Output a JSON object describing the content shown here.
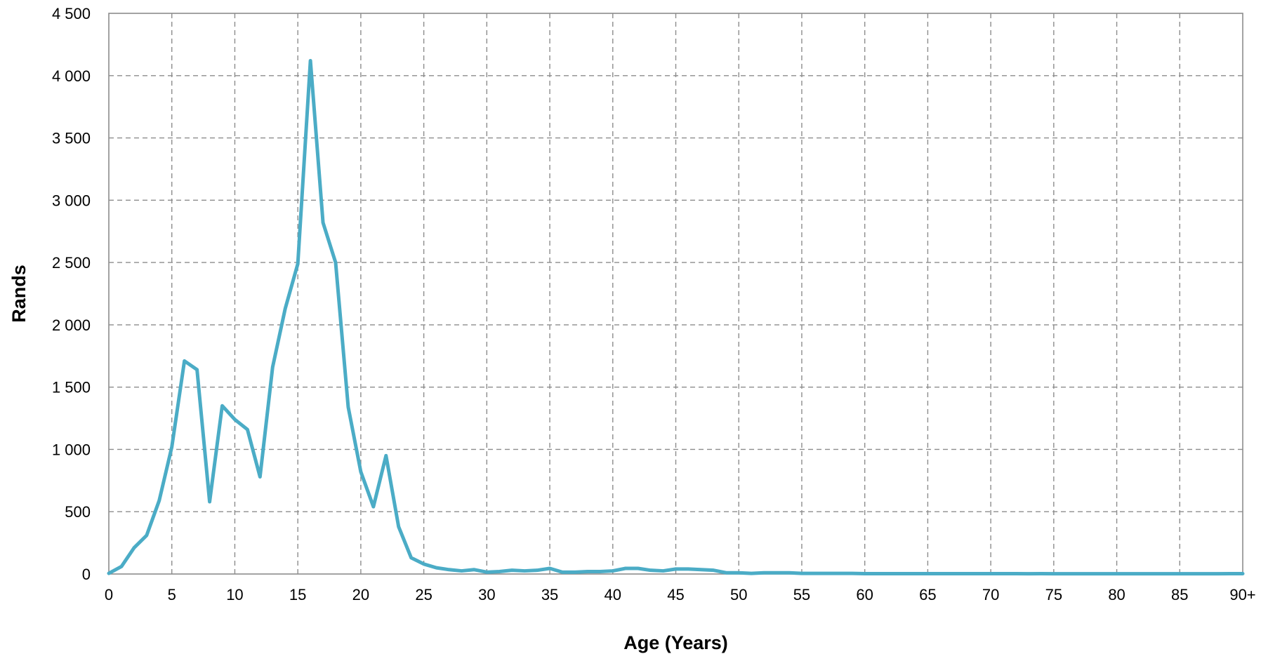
{
  "chart_data": {
    "type": "line",
    "xlabel": "Age (Years)",
    "ylabel": "Rands",
    "xlim": [
      0,
      90
    ],
    "ylim": [
      0,
      4500
    ],
    "grid": true,
    "legend": "none",
    "line_color": "#4bacc6",
    "x_ticks": [
      {
        "value": 0,
        "label": "0"
      },
      {
        "value": 5,
        "label": "5"
      },
      {
        "value": 10,
        "label": "10"
      },
      {
        "value": 15,
        "label": "15"
      },
      {
        "value": 20,
        "label": "20"
      },
      {
        "value": 25,
        "label": "25"
      },
      {
        "value": 30,
        "label": "30"
      },
      {
        "value": 35,
        "label": "35"
      },
      {
        "value": 40,
        "label": "40"
      },
      {
        "value": 45,
        "label": "45"
      },
      {
        "value": 50,
        "label": "50"
      },
      {
        "value": 55,
        "label": "55"
      },
      {
        "value": 60,
        "label": "60"
      },
      {
        "value": 65,
        "label": "65"
      },
      {
        "value": 70,
        "label": "70"
      },
      {
        "value": 75,
        "label": "75"
      },
      {
        "value": 80,
        "label": "80"
      },
      {
        "value": 85,
        "label": "85"
      },
      {
        "value": 90,
        "label": "90+"
      }
    ],
    "y_ticks": [
      {
        "value": 0,
        "label": "0"
      },
      {
        "value": 500,
        "label": "500"
      },
      {
        "value": 1000,
        "label": "1 000"
      },
      {
        "value": 1500,
        "label": "1 500"
      },
      {
        "value": 2000,
        "label": "2 000"
      },
      {
        "value": 2500,
        "label": "2 500"
      },
      {
        "value": 3000,
        "label": "3 000"
      },
      {
        "value": 3500,
        "label": "3 500"
      },
      {
        "value": 4000,
        "label": "4 000"
      },
      {
        "value": 4500,
        "label": "4 500"
      }
    ],
    "series": [
      {
        "x": [
          0,
          1,
          2,
          3,
          4,
          5,
          6,
          7,
          8,
          9,
          10,
          11,
          12,
          13,
          14,
          15,
          16,
          17,
          18,
          19,
          20,
          21,
          22,
          23,
          24,
          25,
          26,
          27,
          28,
          29,
          30,
          31,
          32,
          33,
          34,
          35,
          36,
          37,
          38,
          39,
          40,
          41,
          42,
          43,
          44,
          45,
          46,
          47,
          48,
          49,
          50,
          51,
          52,
          53,
          54,
          55,
          56,
          57,
          58,
          59,
          60,
          61,
          62,
          63,
          64,
          65,
          66,
          67,
          68,
          69,
          70,
          71,
          72,
          73,
          74,
          75,
          76,
          77,
          78,
          79,
          80,
          81,
          82,
          83,
          84,
          85,
          86,
          87,
          88,
          89,
          90
        ],
        "values": [
          5,
          60,
          210,
          310,
          590,
          1020,
          1710,
          1640,
          580,
          1350,
          1240,
          1160,
          780,
          1660,
          2130,
          2490,
          4120,
          2820,
          2500,
          1340,
          820,
          540,
          950,
          380,
          130,
          80,
          50,
          35,
          25,
          35,
          15,
          20,
          30,
          25,
          30,
          45,
          15,
          15,
          20,
          20,
          25,
          45,
          45,
          30,
          25,
          40,
          40,
          35,
          30,
          10,
          10,
          5,
          10,
          10,
          10,
          5,
          5,
          5,
          5,
          5,
          3,
          3,
          3,
          3,
          3,
          3,
          3,
          3,
          3,
          3,
          3,
          3,
          3,
          2,
          3,
          2,
          2,
          2,
          2,
          2,
          2,
          2,
          2,
          2,
          2,
          2,
          2,
          2,
          2,
          3,
          3
        ]
      }
    ]
  }
}
